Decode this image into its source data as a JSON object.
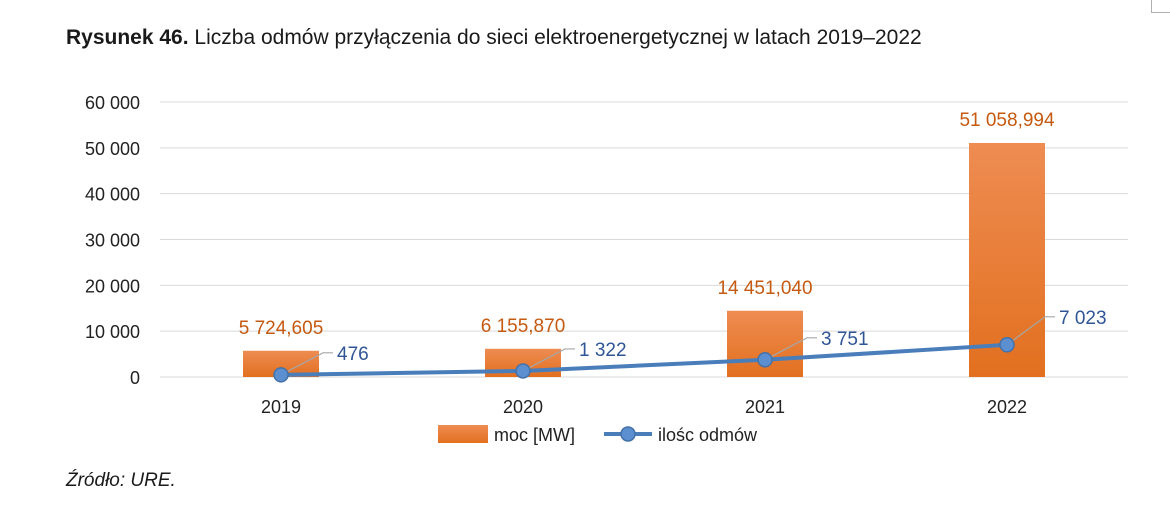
{
  "figure": {
    "label": "Rysunek 46.",
    "title": "Liczba odmów przyłączenia do sieci elektroenergetycznej w latach 2019–2022",
    "source": "Źródło: URE."
  },
  "chart_data": {
    "type": "bar",
    "categories": [
      "2019",
      "2020",
      "2021",
      "2022"
    ],
    "series": [
      {
        "name": "moc [MW]",
        "type": "bar",
        "color": "#ED7D31",
        "values": [
          5724.605,
          6155.87,
          14451.04,
          51058.994
        ],
        "data_labels": [
          "5 724,605",
          "6 155,870",
          "14 451,040",
          "51 058,994"
        ]
      },
      {
        "name": "ilośc odmów",
        "type": "line",
        "color": "#4A7EBB",
        "values": [
          476,
          1322,
          3751,
          7023
        ],
        "data_labels": [
          "476",
          "1 322",
          "3 751",
          "7 023"
        ]
      }
    ],
    "ylim": [
      0,
      60000
    ],
    "yticks": [
      0,
      10000,
      20000,
      30000,
      40000,
      50000,
      60000
    ],
    "ytick_labels": [
      "0",
      "10 000",
      "20 000",
      "30 000",
      "40 000",
      "50 000",
      "60 000"
    ],
    "grid": true,
    "legend_position": "bottom"
  }
}
